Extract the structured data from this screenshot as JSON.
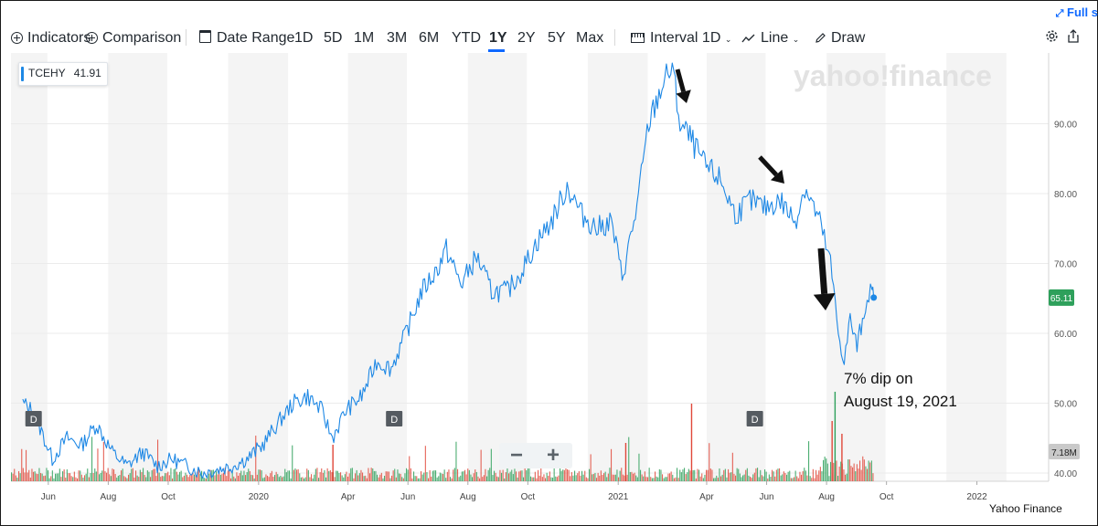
{
  "toolbar": {
    "indicators": "Indicators",
    "comparison": "Comparison",
    "date_range": "Date Range",
    "ranges": [
      "1D",
      "5D",
      "1M",
      "3M",
      "6M",
      "YTD",
      "1Y",
      "2Y",
      "5Y",
      "Max"
    ],
    "active_range": "1Y",
    "interval_label": "Interval",
    "interval_value": "1D",
    "line_label": "Line",
    "draw_label": "Draw",
    "fullscreen": "Full s"
  },
  "watermark": "yahoo!finance",
  "symbol_badge": {
    "ticker": "TCEHY",
    "value": "41.91"
  },
  "price_badge": "65.11",
  "volume_badge": "7.18M",
  "dividend_marker": "D",
  "annotation": {
    "line1": "7% dip on",
    "line2": "August 19, 2021"
  },
  "source": "Yahoo Finance",
  "zoom": {
    "minus": "−",
    "plus": "+"
  },
  "colors": {
    "line": "#1e88e5",
    "up_volume": "#2ea05b",
    "down_volume": "#e0483a",
    "price_badge": "#2ea05b",
    "accent": "#0f69ff"
  },
  "chart_data": {
    "type": "line",
    "title": "",
    "ylabel": "",
    "ylim": [
      40,
      100
    ],
    "y_ticks": [
      "40.00",
      "50.00",
      "60.00",
      "70.00",
      "80.00",
      "90.00"
    ],
    "x_tick_labels": [
      "Jun",
      "Aug",
      "Oct",
      "2020",
      "Apr",
      "Jun",
      "Aug",
      "Oct",
      "2021",
      "Apr",
      "Jun",
      "Aug",
      "Oct",
      "2022"
    ],
    "grid": true,
    "series": [
      {
        "x": [
          "2019-05-06",
          "2019-05-15",
          "2019-05-25",
          "2019-06-05",
          "2019-06-20",
          "2019-07-05",
          "2019-07-20",
          "2019-08-05",
          "2019-08-20",
          "2019-09-05",
          "2019-09-20",
          "2019-10-05",
          "2019-10-20",
          "2019-11-05",
          "2019-11-20",
          "2019-12-05",
          "2019-12-20",
          "2020-01-05",
          "2020-01-20",
          "2020-02-05",
          "2020-02-20",
          "2020-03-05",
          "2020-03-16",
          "2020-03-30",
          "2020-04-15",
          "2020-04-30",
          "2020-05-15",
          "2020-05-30",
          "2020-06-15",
          "2020-06-30",
          "2020-07-10",
          "2020-07-25",
          "2020-08-10",
          "2020-08-25",
          "2020-09-10",
          "2020-09-25",
          "2020-10-10",
          "2020-10-25",
          "2020-11-10",
          "2020-11-25",
          "2020-12-10",
          "2020-12-25",
          "2021-01-05",
          "2021-01-20",
          "2021-02-01",
          "2021-02-16",
          "2021-02-25",
          "2021-03-05",
          "2021-03-15",
          "2021-03-30",
          "2021-04-15",
          "2021-04-30",
          "2021-05-15",
          "2021-05-30",
          "2021-06-15",
          "2021-06-30",
          "2021-07-10",
          "2021-07-25",
          "2021-08-05",
          "2021-08-13",
          "2021-08-19",
          "2021-08-25",
          "2021-09-01",
          "2021-09-08",
          "2021-09-13",
          "2021-09-18"
        ],
        "y": [
          50,
          49,
          46,
          42,
          45,
          44,
          47,
          43,
          41,
          43,
          41,
          42,
          41,
          40,
          40.5,
          41,
          42,
          44,
          47,
          50,
          51,
          49,
          45,
          49,
          51,
          56,
          55,
          60,
          66,
          69,
          72,
          67,
          71,
          66,
          66,
          69,
          73,
          76,
          81,
          77,
          75,
          76,
          68,
          78,
          90,
          96,
          98,
          90,
          88,
          84,
          82,
          77,
          79,
          78,
          79,
          76,
          81,
          76,
          70,
          60,
          56,
          62,
          58,
          63,
          66,
          65.11
        ]
      }
    ],
    "volume": {
      "unit": "M",
      "last": 7.18,
      "note": "daily volume bars, green for up days and red for down days"
    },
    "dividend_dates": [
      "2019-05-17",
      "2020-05-18",
      "2021-05-20"
    ],
    "last_value": 65.11,
    "open_value": 41.91
  }
}
